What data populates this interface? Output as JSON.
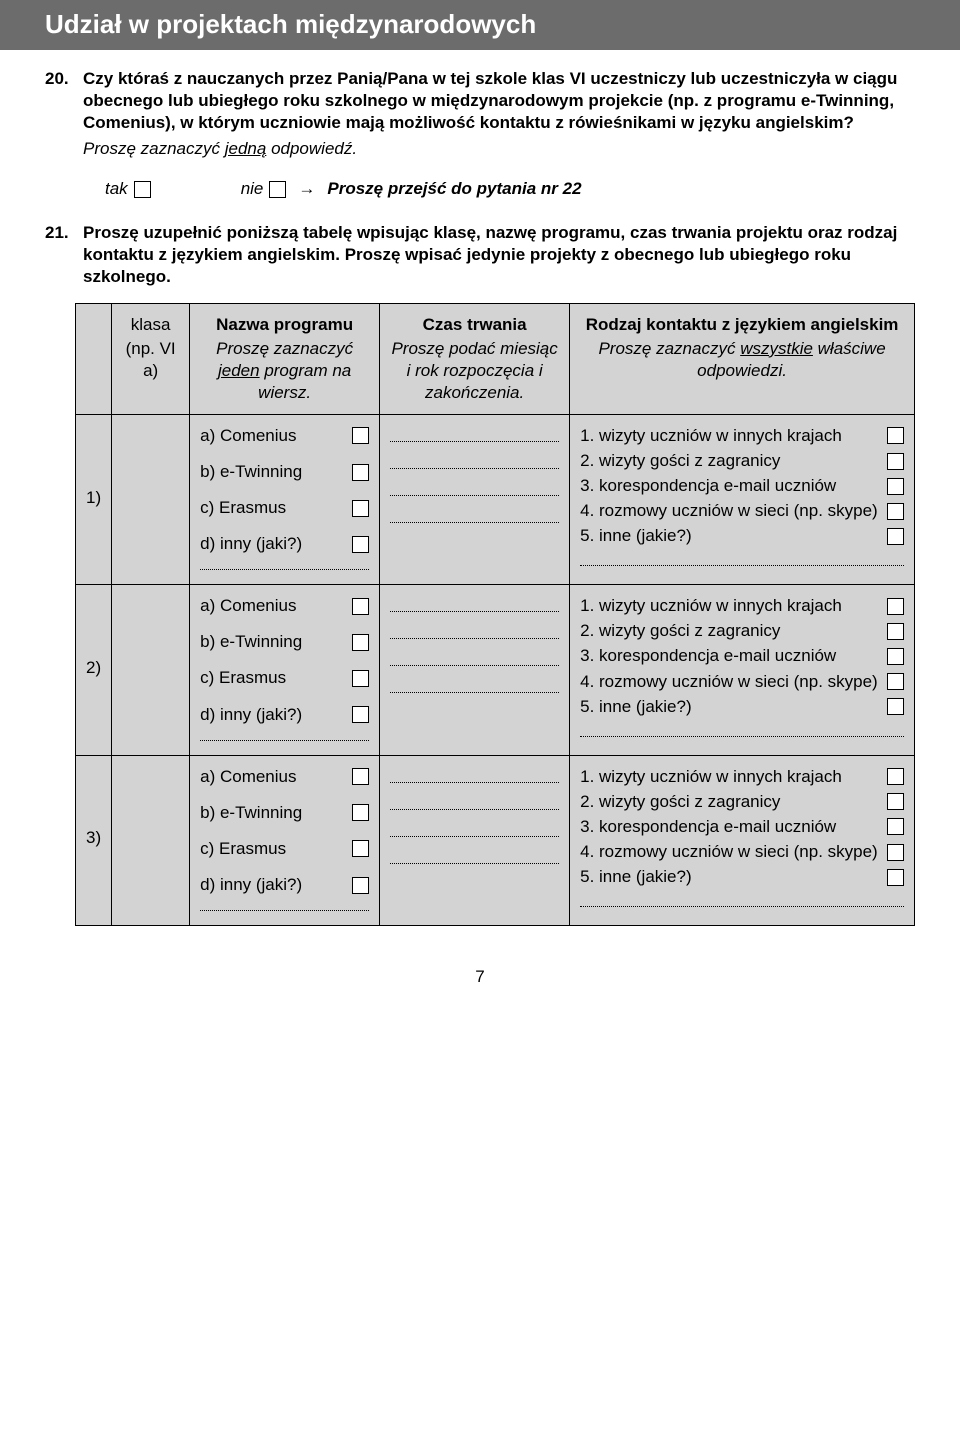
{
  "section_title": "Udział w projektach międzynarodowych",
  "q20": {
    "num": "20.",
    "text": "Czy któraś z nauczanych przez Panią/Pana w tej szkole klas VI uczestniczy lub uczestniczyła w ciągu obecnego lub ubiegłego roku szkolnego w międzynarodowym projekcie (np. z programu e-Twinning, Comenius), w którym uczniowie mają możliwość kontaktu z rówieśnikami w języku angielskim?",
    "instr_pre": "Proszę zaznaczyć ",
    "instr_u": "jedną",
    "instr_post": " odpowiedź.",
    "yes": "tak",
    "no": "nie",
    "skip": "Proszę przejść do pytania nr 22"
  },
  "q21": {
    "num": "21.",
    "text": "Proszę uzupełnić poniższą tabelę wpisując klasę, nazwę programu, czas trwania projektu oraz rodzaj kontaktu z językiem angielskim. Proszę wpisać jedynie projekty z obecnego lub ubiegłego roku szkolnego."
  },
  "headers": {
    "klasa": "klasa",
    "klasa_sub": "(np. VI a)",
    "program": "Nazwa programu",
    "program_sub_pre": "Proszę zaznaczyć ",
    "program_sub_u": "jeden",
    "program_sub_post": " program na wiersz.",
    "czas": "Czas trwania",
    "czas_sub": "Proszę podać miesiąc i rok rozpoczęcia i zakończenia.",
    "kontakt": "Rodzaj kontaktu z językiem angielskim",
    "kontakt_sub_pre": "Proszę zaznaczyć ",
    "kontakt_sub_u": "wszystkie",
    "kontakt_sub_post": " właściwe odpowiedzi."
  },
  "programs": {
    "a": "a) Comenius",
    "b": "b) e-Twinning",
    "c": "c) Erasmus",
    "d": "d) inny (jaki?)"
  },
  "contacts": {
    "c1": "1. wizyty uczniów w innych krajach",
    "c2": "2. wizyty gości z zagranicy",
    "c3": "3. korespondencja e-mail uczniów",
    "c4": "4. rozmowy uczniów w sieci (np. skype)",
    "c5": "5. inne (jakie?)"
  },
  "rows": {
    "r1": "1)",
    "r2": "2)",
    "r3": "3)"
  },
  "page_number": "7"
}
